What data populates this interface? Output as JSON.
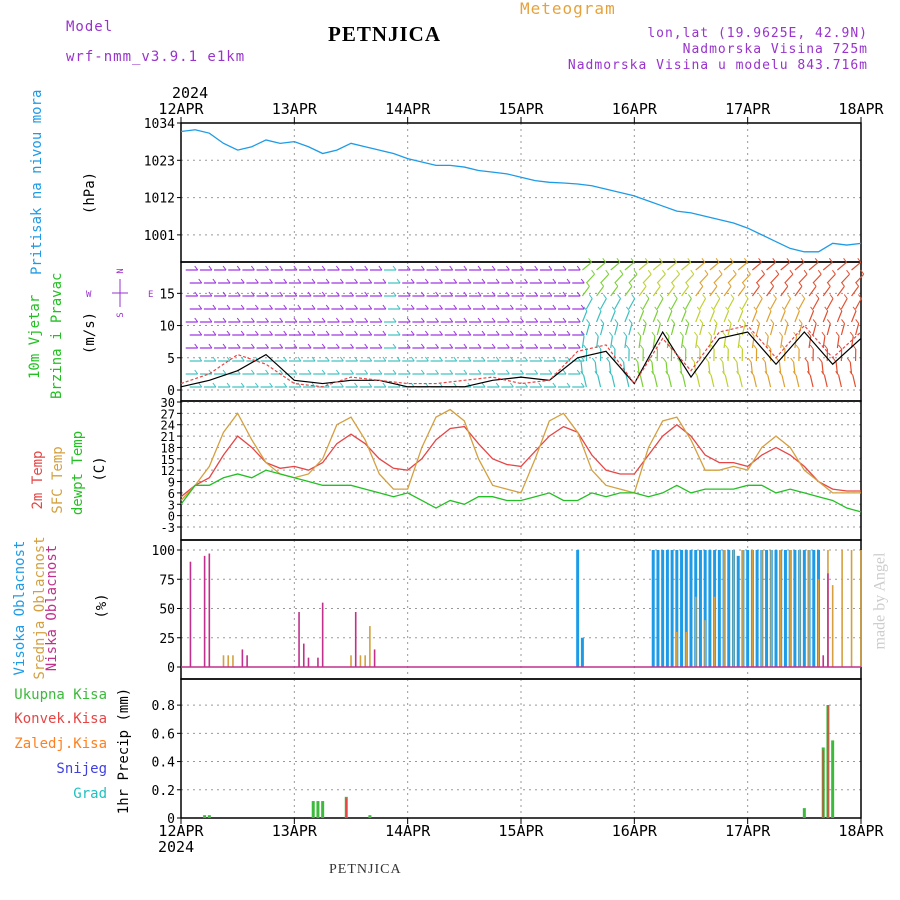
{
  "header": {
    "model_label": "Model",
    "model_name": "wrf-nmm_v3.9.1 e1km",
    "station_title": "PETNJICA",
    "meteogram_label": "Meteogram",
    "coords": "lon,lat (19.9625E, 42.9N)",
    "elevation": "Nadmorska Visina 725m",
    "model_elevation": "Nadmorska Visina u modelu 843.716m",
    "year_top": "2024",
    "year_bottom": "2024",
    "footer_station": "PETNJICA",
    "watermark": "made by Angel"
  },
  "colors": {
    "pressure": "#1e9be6",
    "temp2m": "#e64646",
    "sfc": "#d4a040",
    "dewpt": "#23c023",
    "high_cloud": "#1e9be6",
    "mid_cloud": "#d4a040",
    "low_cloud": "#c0308c",
    "total_precip": "#3cba3c",
    "conv_precip": "#e64646",
    "ice_precip": "#ff8020",
    "snow": "#4040e0",
    "hail": "#20c0c0",
    "purple_text": "#9933cc",
    "wind_label": "#23c023"
  },
  "axis": {
    "days": [
      "12APR",
      "13APR",
      "14APR",
      "15APR",
      "16APR",
      "17APR",
      "18APR"
    ]
  },
  "panel_labels": {
    "pressure": [
      "Pritisak na nivou mora",
      "(hPa)"
    ],
    "wind": [
      "10m Vjetar",
      "Brzina i Pravac",
      "(m/s)"
    ],
    "compass": [
      "N",
      "W",
      "E",
      "S"
    ],
    "temp": [
      "2m Temp",
      "SFC Temp",
      "dewpt Temp",
      "(C)"
    ],
    "cloud": [
      "Visoka Oblacnost",
      "Srednja Oblacnost",
      "Niska Oblacnost",
      "(%)"
    ],
    "precip_legend": [
      "Ukupna Kisa",
      "Konvek.Kisa",
      "Zaledj.Kisa",
      "Snijeg",
      "Grad"
    ],
    "precip_unit": "1hr Precip (mm)"
  },
  "chart_data": [
    {
      "type": "line",
      "panel": "pressure",
      "ylabel": "(hPa)",
      "ylim": [
        993,
        1034
      ],
      "yticks": [
        1001,
        1012,
        1023,
        1034
      ],
      "x_unit": "hours since 12APR 00UTC",
      "x": [
        0,
        3,
        6,
        9,
        12,
        15,
        18,
        21,
        24,
        27,
        30,
        33,
        36,
        39,
        42,
        45,
        48,
        51,
        54,
        57,
        60,
        63,
        66,
        69,
        72,
        75,
        78,
        81,
        84,
        87,
        90,
        93,
        96,
        99,
        102,
        105,
        108,
        111,
        114,
        117,
        120,
        123,
        126,
        129,
        132,
        135,
        138,
        141,
        144
      ],
      "values": [
        1031.5,
        1032,
        1031,
        1028,
        1026,
        1027,
        1029,
        1028,
        1028.5,
        1027,
        1025,
        1026,
        1028,
        1027,
        1026,
        1025,
        1023.5,
        1022.5,
        1021.5,
        1021.5,
        1021,
        1020,
        1019.5,
        1019,
        1018,
        1017,
        1016.5,
        1016.3,
        1016,
        1015.5,
        1014.5,
        1013.5,
        1012.5,
        1011,
        1009.5,
        1008,
        1007.5,
        1006.5,
        1005.5,
        1004.5,
        1003,
        1001,
        999,
        997,
        996,
        996,
        998.5,
        998,
        998.5
      ],
      "grid": true
    },
    {
      "type": "line",
      "panel": "wind",
      "ylabel": "(m/s)",
      "ylim": [
        0,
        18
      ],
      "yticks": [
        0,
        5,
        10,
        15
      ],
      "x_unit": "hours since 12APR 00UTC",
      "x": [
        0,
        6,
        12,
        18,
        24,
        30,
        36,
        42,
        48,
        54,
        60,
        66,
        72,
        78,
        84,
        90,
        96,
        102,
        108,
        114,
        120,
        126,
        132,
        138,
        144
      ],
      "series": [
        {
          "name": "",
          "color": "#000000",
          "values": [
            0.5,
            1.5,
            3,
            5.5,
            1.5,
            1,
            1.5,
            1.5,
            0.5,
            0.5,
            0.5,
            1.5,
            2,
            1.5,
            5,
            6,
            1,
            9,
            2,
            8,
            9,
            4,
            9,
            4,
            8
          ]
        },
        {
          "name": "",
          "color": "#e64646",
          "values": [
            1,
            2.5,
            5.5,
            4,
            1,
            0.5,
            2,
            1.5,
            1,
            1,
            1.5,
            2,
            1,
            1.5,
            6,
            7,
            1,
            8,
            3,
            9,
            10,
            5,
            10,
            5,
            9
          ]
        }
      ],
      "grid": true
    },
    {
      "type": "line",
      "panel": "temp",
      "ylabel": "(C)",
      "ylim": [
        -3,
        30
      ],
      "yticks": [
        -3,
        0,
        3,
        6,
        9,
        12,
        15,
        18,
        21,
        24,
        27,
        30
      ],
      "x_unit": "hours since 12APR 00UTC",
      "x": [
        0,
        3,
        6,
        9,
        12,
        15,
        18,
        21,
        24,
        27,
        30,
        33,
        36,
        39,
        42,
        45,
        48,
        51,
        54,
        57,
        60,
        63,
        66,
        69,
        72,
        75,
        78,
        81,
        84,
        87,
        90,
        93,
        96,
        99,
        102,
        105,
        108,
        111,
        114,
        117,
        120,
        123,
        126,
        129,
        132,
        135,
        138,
        141,
        144
      ],
      "series": [
        {
          "name": "2m Temp",
          "color": "#e64646",
          "values": [
            5,
            8,
            10,
            16,
            21,
            18,
            14,
            12.5,
            13,
            12,
            14,
            19,
            21.5,
            19,
            15,
            12.5,
            12,
            15,
            20,
            23,
            23.5,
            19,
            15,
            13.5,
            13,
            17,
            21,
            23.5,
            22,
            16,
            12,
            11,
            11,
            16,
            21,
            24,
            21,
            16,
            14,
            14,
            13,
            16,
            18,
            16,
            13,
            9,
            7,
            6.5,
            6.5
          ]
        },
        {
          "name": "SFC Temp",
          "color": "#d4a040",
          "values": [
            4,
            8,
            13,
            22,
            27,
            20,
            14,
            11,
            10,
            11,
            15,
            24,
            26,
            20,
            11,
            7,
            7,
            18,
            26,
            28,
            25,
            15,
            8,
            7,
            6,
            15,
            25,
            27,
            22,
            12,
            8,
            7,
            6,
            18,
            25,
            26,
            20,
            12,
            12,
            13,
            12,
            18,
            21,
            18,
            12,
            9,
            6,
            6,
            6
          ]
        },
        {
          "name": "dewpt Temp",
          "color": "#23c023",
          "values": [
            3,
            8,
            8,
            10,
            11,
            10,
            12,
            11,
            10,
            9,
            8,
            8,
            8,
            7,
            6,
            5,
            6,
            4,
            2,
            4,
            3,
            5,
            5,
            4,
            4,
            5,
            6,
            4,
            4,
            6,
            5,
            6,
            6,
            5,
            6,
            8,
            6,
            7,
            7,
            7,
            8,
            8,
            6,
            7,
            6,
            5,
            4,
            2,
            1
          ]
        }
      ],
      "grid": true
    },
    {
      "type": "bar",
      "panel": "cloud",
      "ylabel": "(%)",
      "ylim": [
        0,
        100
      ],
      "yticks": [
        0,
        25,
        50,
        75,
        100
      ],
      "x_unit": "hours since 12APR 00UTC",
      "series": [
        {
          "name": "Visoka Oblacnost",
          "color": "#1e9be6",
          "x": [
            84,
            85,
            100,
            101,
            102,
            103,
            104,
            105,
            106,
            107,
            108,
            109,
            110,
            111,
            112,
            113,
            114,
            115,
            116,
            117,
            118,
            119,
            120,
            121,
            122,
            123,
            124,
            125,
            126,
            127,
            128,
            129,
            130,
            131,
            132,
            133,
            134,
            135
          ],
          "values": [
            100,
            25,
            100,
            100,
            100,
            100,
            100,
            100,
            100,
            100,
            100,
            100,
            100,
            100,
            100,
            100,
            100,
            100,
            100,
            100,
            95,
            100,
            100,
            100,
            100,
            100,
            100,
            100,
            100,
            100,
            100,
            100,
            100,
            100,
            100,
            100,
            100,
            100
          ]
        },
        {
          "name": "Srednja Oblacnost",
          "color": "#d4a040",
          "x": [
            9,
            10,
            11,
            36,
            38,
            39,
            40,
            105,
            107,
            109,
            111,
            113,
            115,
            117,
            119,
            121,
            123,
            125,
            127,
            129,
            131,
            133,
            135,
            137,
            138,
            140,
            142,
            144
          ],
          "values": [
            10,
            10,
            10,
            10,
            10,
            10,
            35,
            30,
            30,
            60,
            40,
            60,
            100,
            100,
            100,
            100,
            100,
            100,
            100,
            100,
            100,
            100,
            75,
            100,
            70,
            100,
            100,
            100
          ]
        },
        {
          "name": "Niska Oblacnost",
          "color": "#c0308c",
          "x": [
            2,
            5,
            6,
            13,
            14,
            25,
            26,
            27,
            29,
            30,
            37,
            41,
            136,
            137
          ],
          "values": [
            90,
            95,
            97,
            15,
            10,
            47,
            20,
            8,
            8,
            55,
            47,
            15,
            10,
            80
          ]
        }
      ],
      "grid": true
    },
    {
      "type": "bar",
      "panel": "precip",
      "ylabel": "1hr Precip (mm)",
      "ylim": [
        0,
        0.9
      ],
      "yticks": [
        0,
        0.2,
        0.4,
        0.6,
        0.8
      ],
      "x_unit": "hours since 12APR 00UTC",
      "series": [
        {
          "name": "Ukupna Kisa",
          "color": "#3cba3c",
          "x": [
            5,
            6,
            28,
            29,
            30,
            35,
            40,
            132,
            136,
            137,
            138
          ],
          "values": [
            0.02,
            0.02,
            0.12,
            0.12,
            0.12,
            0.15,
            0.02,
            0.07,
            0.5,
            0.8,
            0.55
          ]
        },
        {
          "name": "Konvek.Kisa",
          "color": "#e64646",
          "x": [
            35,
            136,
            137
          ],
          "values": [
            0.14,
            0.48,
            0.8
          ]
        }
      ],
      "grid": true
    }
  ]
}
